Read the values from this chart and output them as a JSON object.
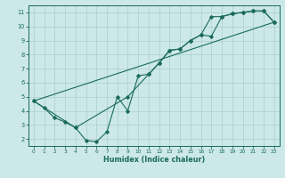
{
  "xlabel": "Humidex (Indice chaleur)",
  "ylabel": "",
  "bg_color": "#cce8e8",
  "grid_color": "#aacfcf",
  "line_color": "#1a6b5a",
  "xlim": [
    -0.5,
    23.5
  ],
  "ylim": [
    1.5,
    11.5
  ],
  "xticks": [
    0,
    1,
    2,
    3,
    4,
    5,
    6,
    7,
    8,
    9,
    10,
    11,
    12,
    13,
    14,
    15,
    16,
    17,
    18,
    19,
    20,
    21,
    22,
    23
  ],
  "yticks": [
    2,
    3,
    4,
    5,
    6,
    7,
    8,
    9,
    10,
    11
  ],
  "series1": {
    "x": [
      0,
      1,
      2,
      3,
      4,
      5,
      6,
      7,
      8,
      9,
      10,
      11,
      12,
      13,
      14,
      15,
      16,
      17,
      18,
      19,
      20,
      21,
      22,
      23
    ],
    "y": [
      4.7,
      4.2,
      3.5,
      3.2,
      2.8,
      1.9,
      1.8,
      2.5,
      5.0,
      4.0,
      6.5,
      6.6,
      7.4,
      8.3,
      8.4,
      9.0,
      9.4,
      9.3,
      10.7,
      10.9,
      11.0,
      11.1,
      11.1,
      10.3
    ]
  },
  "series2": {
    "x": [
      0,
      4,
      9,
      11,
      12,
      13,
      14,
      15,
      16,
      17,
      18,
      19,
      20,
      21,
      22,
      23
    ],
    "y": [
      4.7,
      2.8,
      5.0,
      6.6,
      7.4,
      8.3,
      8.4,
      9.0,
      9.4,
      10.7,
      10.7,
      10.9,
      11.0,
      11.1,
      11.1,
      10.3
    ]
  },
  "series3": {
    "x": [
      0,
      23
    ],
    "y": [
      4.7,
      10.3
    ]
  }
}
